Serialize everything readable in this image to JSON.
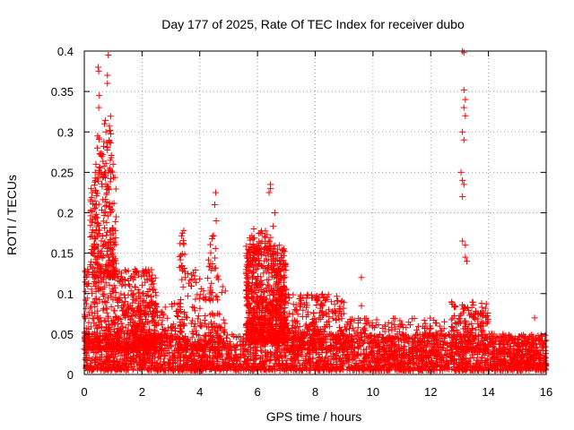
{
  "chart_data": {
    "type": "scatter",
    "title": "Day 177 of 2025, Rate Of TEC Index for receiver dubo",
    "xlabel": "GPS time / hours",
    "ylabel": "ROTI / TECUs",
    "xlim": [
      0,
      16
    ],
    "ylim": [
      0,
      0.4
    ],
    "xticks": [
      "0",
      "2",
      "4",
      "6",
      "8",
      "10",
      "12",
      "14",
      "16"
    ],
    "yticks": [
      "0",
      "0.05",
      "0.1",
      "0.15",
      "0.2",
      "0.25",
      "0.3",
      "0.35",
      "0.4"
    ],
    "grid": true,
    "marker": "+",
    "color": "#ff0000",
    "series": [
      {
        "name": "ROTI",
        "clusters": [
          {
            "x": [
              0.0,
              16.0
            ],
            "y": [
              0.005,
              0.05
            ],
            "n": 2600
          },
          {
            "x": [
              0.0,
              2.5
            ],
            "y": [
              0.03,
              0.13
            ],
            "n": 600
          },
          {
            "x": [
              0.2,
              1.1
            ],
            "y": [
              0.12,
              0.25
            ],
            "n": 260
          },
          {
            "x": [
              0.5,
              1.0
            ],
            "y": [
              0.25,
              0.32
            ],
            "n": 40
          },
          {
            "x": [
              1.5,
              3.5
            ],
            "y": [
              0.03,
              0.09
            ],
            "n": 200
          },
          {
            "x": [
              3.2,
              4.9
            ],
            "y": [
              0.03,
              0.13
            ],
            "n": 200
          },
          {
            "x": [
              3.3,
              3.5
            ],
            "y": [
              0.13,
              0.18
            ],
            "n": 15
          },
          {
            "x": [
              4.3,
              4.6
            ],
            "y": [
              0.13,
              0.18
            ],
            "n": 15
          },
          {
            "x": [
              5.6,
              7.0
            ],
            "y": [
              0.04,
              0.16
            ],
            "n": 800
          },
          {
            "x": [
              5.7,
              6.6
            ],
            "y": [
              0.14,
              0.19
            ],
            "n": 50
          },
          {
            "x": [
              6.9,
              9.0
            ],
            "y": [
              0.03,
              0.1
            ],
            "n": 350
          },
          {
            "x": [
              9.0,
              12.5
            ],
            "y": [
              0.02,
              0.07
            ],
            "n": 300
          },
          {
            "x": [
              12.7,
              14.0
            ],
            "y": [
              0.03,
              0.09
            ],
            "n": 200
          },
          {
            "x": [
              14.0,
              16.0
            ],
            "y": [
              0.01,
              0.05
            ],
            "n": 200
          }
        ],
        "peaks": [
          [
            0.35,
            0.205
          ],
          [
            0.38,
            0.25
          ],
          [
            0.4,
            0.26
          ],
          [
            0.45,
            0.28
          ],
          [
            0.46,
            0.295
          ],
          [
            0.5,
            0.33
          ],
          [
            0.52,
            0.345
          ],
          [
            0.5,
            0.375
          ],
          [
            0.48,
            0.38
          ],
          [
            0.6,
            0.27
          ],
          [
            0.7,
            0.31
          ],
          [
            0.75,
            0.3
          ],
          [
            0.8,
            0.37
          ],
          [
            0.8,
            0.36
          ],
          [
            0.83,
            0.395
          ],
          [
            0.9,
            0.265
          ],
          [
            1.0,
            0.26
          ],
          [
            1.1,
            0.195
          ],
          [
            1.75,
            0.13
          ],
          [
            1.75,
            0.12
          ],
          [
            3.4,
            0.175
          ],
          [
            3.45,
            0.178
          ],
          [
            4.55,
            0.225
          ],
          [
            4.52,
            0.21
          ],
          [
            4.57,
            0.19
          ],
          [
            6.45,
            0.235
          ],
          [
            6.45,
            0.23
          ],
          [
            6.4,
            0.225
          ],
          [
            6.6,
            0.2
          ],
          [
            6.7,
            0.155
          ],
          [
            9.6,
            0.12
          ],
          [
            9.6,
            0.085
          ],
          [
            13.1,
            0.4
          ],
          [
            13.15,
            0.398
          ],
          [
            13.15,
            0.352
          ],
          [
            13.2,
            0.34
          ],
          [
            13.15,
            0.33
          ],
          [
            13.2,
            0.32
          ],
          [
            13.1,
            0.3
          ],
          [
            13.15,
            0.29
          ],
          [
            13.05,
            0.25
          ],
          [
            13.1,
            0.24
          ],
          [
            13.15,
            0.235
          ],
          [
            13.1,
            0.22
          ],
          [
            13.1,
            0.165
          ],
          [
            13.2,
            0.16
          ],
          [
            13.2,
            0.145
          ],
          [
            13.25,
            0.14
          ],
          [
            15.6,
            0.07
          ]
        ]
      }
    ]
  }
}
